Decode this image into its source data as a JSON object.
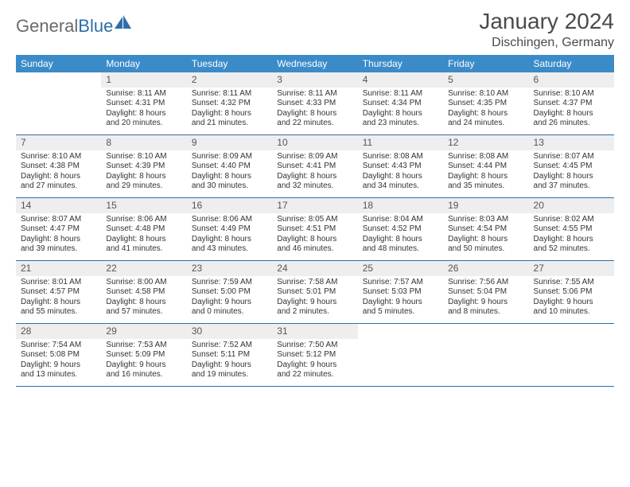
{
  "brand": {
    "part1": "General",
    "part2": "Blue"
  },
  "title": "January 2024",
  "location": "Dischingen, Germany",
  "colors": {
    "header_bg": "#3b8bc9",
    "rule": "#2e6ea8",
    "daynum_bg": "#eeeeee",
    "text": "#333333",
    "brand_grey": "#6b6b6b",
    "brand_blue": "#2e6ea8",
    "page_bg": "#ffffff"
  },
  "weekdays": [
    "Sunday",
    "Monday",
    "Tuesday",
    "Wednesday",
    "Thursday",
    "Friday",
    "Saturday"
  ],
  "weeks": [
    [
      {
        "n": "",
        "l1": "",
        "l2": "",
        "l3": "",
        "l4": ""
      },
      {
        "n": "1",
        "l1": "Sunrise: 8:11 AM",
        "l2": "Sunset: 4:31 PM",
        "l3": "Daylight: 8 hours",
        "l4": "and 20 minutes."
      },
      {
        "n": "2",
        "l1": "Sunrise: 8:11 AM",
        "l2": "Sunset: 4:32 PM",
        "l3": "Daylight: 8 hours",
        "l4": "and 21 minutes."
      },
      {
        "n": "3",
        "l1": "Sunrise: 8:11 AM",
        "l2": "Sunset: 4:33 PM",
        "l3": "Daylight: 8 hours",
        "l4": "and 22 minutes."
      },
      {
        "n": "4",
        "l1": "Sunrise: 8:11 AM",
        "l2": "Sunset: 4:34 PM",
        "l3": "Daylight: 8 hours",
        "l4": "and 23 minutes."
      },
      {
        "n": "5",
        "l1": "Sunrise: 8:10 AM",
        "l2": "Sunset: 4:35 PM",
        "l3": "Daylight: 8 hours",
        "l4": "and 24 minutes."
      },
      {
        "n": "6",
        "l1": "Sunrise: 8:10 AM",
        "l2": "Sunset: 4:37 PM",
        "l3": "Daylight: 8 hours",
        "l4": "and 26 minutes."
      }
    ],
    [
      {
        "n": "7",
        "l1": "Sunrise: 8:10 AM",
        "l2": "Sunset: 4:38 PM",
        "l3": "Daylight: 8 hours",
        "l4": "and 27 minutes."
      },
      {
        "n": "8",
        "l1": "Sunrise: 8:10 AM",
        "l2": "Sunset: 4:39 PM",
        "l3": "Daylight: 8 hours",
        "l4": "and 29 minutes."
      },
      {
        "n": "9",
        "l1": "Sunrise: 8:09 AM",
        "l2": "Sunset: 4:40 PM",
        "l3": "Daylight: 8 hours",
        "l4": "and 30 minutes."
      },
      {
        "n": "10",
        "l1": "Sunrise: 8:09 AM",
        "l2": "Sunset: 4:41 PM",
        "l3": "Daylight: 8 hours",
        "l4": "and 32 minutes."
      },
      {
        "n": "11",
        "l1": "Sunrise: 8:08 AM",
        "l2": "Sunset: 4:43 PM",
        "l3": "Daylight: 8 hours",
        "l4": "and 34 minutes."
      },
      {
        "n": "12",
        "l1": "Sunrise: 8:08 AM",
        "l2": "Sunset: 4:44 PM",
        "l3": "Daylight: 8 hours",
        "l4": "and 35 minutes."
      },
      {
        "n": "13",
        "l1": "Sunrise: 8:07 AM",
        "l2": "Sunset: 4:45 PM",
        "l3": "Daylight: 8 hours",
        "l4": "and 37 minutes."
      }
    ],
    [
      {
        "n": "14",
        "l1": "Sunrise: 8:07 AM",
        "l2": "Sunset: 4:47 PM",
        "l3": "Daylight: 8 hours",
        "l4": "and 39 minutes."
      },
      {
        "n": "15",
        "l1": "Sunrise: 8:06 AM",
        "l2": "Sunset: 4:48 PM",
        "l3": "Daylight: 8 hours",
        "l4": "and 41 minutes."
      },
      {
        "n": "16",
        "l1": "Sunrise: 8:06 AM",
        "l2": "Sunset: 4:49 PM",
        "l3": "Daylight: 8 hours",
        "l4": "and 43 minutes."
      },
      {
        "n": "17",
        "l1": "Sunrise: 8:05 AM",
        "l2": "Sunset: 4:51 PM",
        "l3": "Daylight: 8 hours",
        "l4": "and 46 minutes."
      },
      {
        "n": "18",
        "l1": "Sunrise: 8:04 AM",
        "l2": "Sunset: 4:52 PM",
        "l3": "Daylight: 8 hours",
        "l4": "and 48 minutes."
      },
      {
        "n": "19",
        "l1": "Sunrise: 8:03 AM",
        "l2": "Sunset: 4:54 PM",
        "l3": "Daylight: 8 hours",
        "l4": "and 50 minutes."
      },
      {
        "n": "20",
        "l1": "Sunrise: 8:02 AM",
        "l2": "Sunset: 4:55 PM",
        "l3": "Daylight: 8 hours",
        "l4": "and 52 minutes."
      }
    ],
    [
      {
        "n": "21",
        "l1": "Sunrise: 8:01 AM",
        "l2": "Sunset: 4:57 PM",
        "l3": "Daylight: 8 hours",
        "l4": "and 55 minutes."
      },
      {
        "n": "22",
        "l1": "Sunrise: 8:00 AM",
        "l2": "Sunset: 4:58 PM",
        "l3": "Daylight: 8 hours",
        "l4": "and 57 minutes."
      },
      {
        "n": "23",
        "l1": "Sunrise: 7:59 AM",
        "l2": "Sunset: 5:00 PM",
        "l3": "Daylight: 9 hours",
        "l4": "and 0 minutes."
      },
      {
        "n": "24",
        "l1": "Sunrise: 7:58 AM",
        "l2": "Sunset: 5:01 PM",
        "l3": "Daylight: 9 hours",
        "l4": "and 2 minutes."
      },
      {
        "n": "25",
        "l1": "Sunrise: 7:57 AM",
        "l2": "Sunset: 5:03 PM",
        "l3": "Daylight: 9 hours",
        "l4": "and 5 minutes."
      },
      {
        "n": "26",
        "l1": "Sunrise: 7:56 AM",
        "l2": "Sunset: 5:04 PM",
        "l3": "Daylight: 9 hours",
        "l4": "and 8 minutes."
      },
      {
        "n": "27",
        "l1": "Sunrise: 7:55 AM",
        "l2": "Sunset: 5:06 PM",
        "l3": "Daylight: 9 hours",
        "l4": "and 10 minutes."
      }
    ],
    [
      {
        "n": "28",
        "l1": "Sunrise: 7:54 AM",
        "l2": "Sunset: 5:08 PM",
        "l3": "Daylight: 9 hours",
        "l4": "and 13 minutes."
      },
      {
        "n": "29",
        "l1": "Sunrise: 7:53 AM",
        "l2": "Sunset: 5:09 PM",
        "l3": "Daylight: 9 hours",
        "l4": "and 16 minutes."
      },
      {
        "n": "30",
        "l1": "Sunrise: 7:52 AM",
        "l2": "Sunset: 5:11 PM",
        "l3": "Daylight: 9 hours",
        "l4": "and 19 minutes."
      },
      {
        "n": "31",
        "l1": "Sunrise: 7:50 AM",
        "l2": "Sunset: 5:12 PM",
        "l3": "Daylight: 9 hours",
        "l4": "and 22 minutes."
      },
      {
        "n": "",
        "l1": "",
        "l2": "",
        "l3": "",
        "l4": ""
      },
      {
        "n": "",
        "l1": "",
        "l2": "",
        "l3": "",
        "l4": ""
      },
      {
        "n": "",
        "l1": "",
        "l2": "",
        "l3": "",
        "l4": ""
      }
    ]
  ]
}
